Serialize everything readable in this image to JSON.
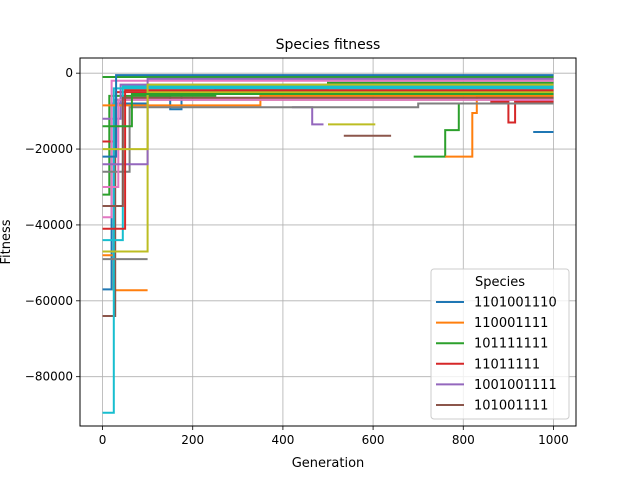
{
  "chart_data": {
    "type": "line",
    "title": "Species fitness",
    "xlabel": "Generation",
    "ylabel": "Fitness",
    "xlim": [
      -50,
      1050
    ],
    "ylim": [
      -93000,
      4000
    ],
    "x_ticks": [
      0,
      200,
      400,
      600,
      800,
      1000
    ],
    "x_tick_labels": [
      "0",
      "200",
      "400",
      "600",
      "800",
      "1000"
    ],
    "y_ticks": [
      0,
      -20000,
      -40000,
      -60000,
      -80000
    ],
    "y_tick_labels": [
      "0",
      "−20000",
      "−40000",
      "−60000",
      "−80000"
    ],
    "grid": true,
    "legend": {
      "title": "Species",
      "placement": "lower right"
    },
    "series": [
      {
        "name": "1101001110",
        "color": "#1f77b4",
        "points": [
          [
            0,
            -57000
          ],
          [
            20,
            -57000
          ],
          [
            20,
            -8000
          ],
          [
            100,
            -8000
          ],
          [
            100,
            -6000
          ],
          [
            150,
            -6000
          ],
          [
            150,
            -9500
          ],
          [
            175,
            -9500
          ],
          [
            175,
            -5000
          ],
          [
            1000,
            -5000
          ]
        ]
      },
      {
        "name": "110001111",
        "color": "#ff7f0e",
        "points": [
          [
            0,
            -48000
          ],
          [
            25,
            -48000
          ],
          [
            25,
            -57200
          ],
          [
            100,
            -57200
          ]
        ]
      },
      {
        "name": "101111111",
        "color": "#2ca02c",
        "points": [
          [
            0,
            -32000
          ],
          [
            15,
            -32000
          ],
          [
            15,
            -6000
          ],
          [
            250,
            -6000
          ],
          [
            250,
            -4000
          ],
          [
            500,
            -4000
          ],
          [
            500,
            -2500
          ],
          [
            1000,
            -2500
          ]
        ]
      },
      {
        "name": "11011111",
        "color": "#d62728",
        "points": [
          [
            0,
            -18000
          ],
          [
            30,
            -18000
          ],
          [
            30,
            -5000
          ],
          [
            1000,
            -5000
          ]
        ]
      },
      {
        "name": "1001001111",
        "color": "#9467bd",
        "points": [
          [
            0,
            -12000
          ],
          [
            40,
            -12000
          ],
          [
            40,
            -3000
          ],
          [
            1000,
            -3000
          ]
        ]
      },
      {
        "name": "101001111",
        "color": "#8c564b",
        "points": [
          [
            0,
            -64000
          ],
          [
            28,
            -64000
          ],
          [
            28,
            -7000
          ],
          [
            1000,
            -7000
          ]
        ]
      },
      {
        "color": "#17becf",
        "points": [
          [
            0,
            -89500
          ],
          [
            25,
            -89500
          ],
          [
            25,
            -4000
          ],
          [
            1000,
            -4000
          ]
        ]
      },
      {
        "color": "#bcbd22",
        "points": [
          [
            0,
            -47000
          ],
          [
            100,
            -47000
          ],
          [
            100,
            -5000
          ],
          [
            1000,
            -5000
          ]
        ]
      },
      {
        "color": "#7f7f7f",
        "points": [
          [
            0,
            -49000
          ],
          [
            100,
            -49000
          ]
        ]
      },
      {
        "color": "#e377c2",
        "points": [
          [
            0,
            -38000
          ],
          [
            20,
            -38000
          ],
          [
            20,
            -2000
          ],
          [
            1000,
            -2000
          ]
        ]
      },
      {
        "color": "#bcbd22",
        "points": [
          [
            500,
            -13500
          ],
          [
            605,
            -13500
          ]
        ]
      },
      {
        "color": "#8c564b",
        "points": [
          [
            535,
            -16500
          ],
          [
            640,
            -16500
          ]
        ]
      },
      {
        "color": "#9467bd",
        "points": [
          [
            420,
            -9000
          ],
          [
            465,
            -9000
          ],
          [
            465,
            -13500
          ],
          [
            490,
            -13500
          ]
        ]
      },
      {
        "color": "#2ca02c",
        "points": [
          [
            690,
            -22000
          ],
          [
            760,
            -22000
          ],
          [
            760,
            -15000
          ],
          [
            790,
            -15000
          ],
          [
            790,
            -8000
          ],
          [
            850,
            -8000
          ]
        ]
      },
      {
        "color": "#ff7f0e",
        "points": [
          [
            760,
            -22000
          ],
          [
            820,
            -22000
          ],
          [
            820,
            -10500
          ],
          [
            830,
            -10500
          ],
          [
            830,
            -6000
          ],
          [
            1000,
            -6000
          ]
        ]
      },
      {
        "color": "#1f77b4",
        "points": [
          [
            955,
            -15500
          ],
          [
            1000,
            -15500
          ]
        ]
      },
      {
        "color": "#d62728",
        "points": [
          [
            860,
            -7500
          ],
          [
            900,
            -7500
          ],
          [
            900,
            -13000
          ],
          [
            915,
            -13000
          ],
          [
            915,
            -7500
          ],
          [
            1000,
            -7500
          ]
        ]
      },
      {
        "color": "#2ca02c",
        "points": [
          [
            0,
            -1000
          ],
          [
            1000,
            -1000
          ]
        ]
      },
      {
        "color": "#ff7f0e",
        "points": [
          [
            0,
            -8500
          ],
          [
            100,
            -8500
          ],
          [
            100,
            -8500
          ],
          [
            350,
            -8500
          ],
          [
            350,
            -6000
          ],
          [
            1000,
            -6000
          ]
        ]
      },
      {
        "color": "#7f7f7f",
        "points": [
          [
            0,
            -26000
          ],
          [
            60,
            -26000
          ],
          [
            60,
            -9000
          ],
          [
            700,
            -9000
          ],
          [
            700,
            -8000
          ],
          [
            1000,
            -8000
          ]
        ]
      },
      {
        "color": "#e377c2",
        "points": [
          [
            0,
            -30000
          ],
          [
            35,
            -30000
          ],
          [
            35,
            -7000
          ],
          [
            1000,
            -7000
          ]
        ]
      },
      {
        "color": "#17becf",
        "points": [
          [
            0,
            -44000
          ],
          [
            45,
            -44000
          ],
          [
            45,
            -3500
          ],
          [
            1000,
            -3500
          ]
        ]
      },
      {
        "color": "#9467bd",
        "points": [
          [
            0,
            -24000
          ],
          [
            100,
            -24000
          ],
          [
            100,
            -1500
          ],
          [
            1000,
            -1500
          ]
        ]
      },
      {
        "color": "#d62728",
        "points": [
          [
            0,
            -41000
          ],
          [
            50,
            -41000
          ],
          [
            50,
            -4500
          ],
          [
            1000,
            -4500
          ]
        ]
      },
      {
        "color": "#1f77b4",
        "points": [
          [
            0,
            -22000
          ],
          [
            30,
            -22000
          ],
          [
            30,
            -500
          ],
          [
            1000,
            -500
          ]
        ]
      },
      {
        "color": "#8c564b",
        "points": [
          [
            0,
            -35000
          ],
          [
            45,
            -35000
          ],
          [
            45,
            -6500
          ],
          [
            1000,
            -6500
          ]
        ]
      },
      {
        "color": "#bcbd22",
        "points": [
          [
            0,
            -20000
          ],
          [
            100,
            -20000
          ],
          [
            100,
            -3000
          ],
          [
            1000,
            -3000
          ]
        ]
      },
      {
        "color": "#2ca02c",
        "points": [
          [
            0,
            -14000
          ],
          [
            65,
            -14000
          ],
          [
            65,
            -5500
          ],
          [
            1000,
            -5500
          ]
        ]
      }
    ]
  }
}
